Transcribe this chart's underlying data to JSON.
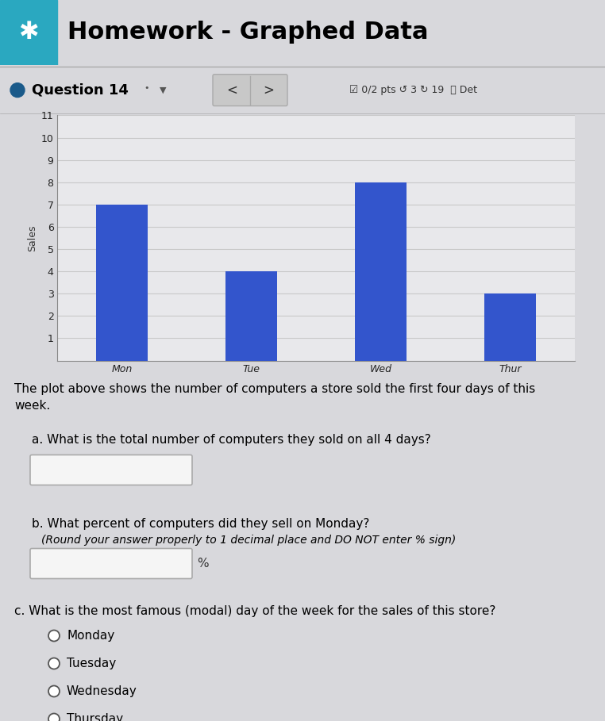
{
  "page_title": "Homework - Graphed Data",
  "question_number": "Question 14",
  "bar_categories": [
    "Mon",
    "Tue",
    "Wed",
    "Thur"
  ],
  "bar_values": [
    7,
    4,
    8,
    3
  ],
  "bar_color": "#3355cc",
  "ylabel": "Sales",
  "ylim": [
    0,
    11
  ],
  "yticks": [
    1,
    2,
    3,
    4,
    5,
    6,
    7,
    8,
    9,
    10,
    11
  ],
  "grid_color": "#c8c8c8",
  "chart_bg": "#e8e8eb",
  "page_bg": "#d8d8dc",
  "header_bg": "#f0f0f0",
  "icon_bg": "#2aa8c0",
  "bullet_color": "#1a5a8a",
  "nav_bg": "#c8c8c8",
  "content_bg": "#e8e8ec",
  "input_bg": "#f5f5f5",
  "text_color": "#111111",
  "text_block": "The plot above shows the number of computers a store sold the first four days of this week.",
  "q_a_text": "a. What is the total number of computers they sold on all 4 days?",
  "q_b1": "b. What percent of computers did they sell on Monday?",
  "q_b2": "   (Round your answer properly to 1 decimal place and DO NOT enter % sign)",
  "q_c": "c. What is the most famous (modal) day of the week for the sales of this store?",
  "options": [
    "Monday",
    "Tuesday",
    "Wednesday",
    "Thursday"
  ],
  "pts_text": "☑ 0/2 pts ↺ 3 ↻ 19  ⓘ Det"
}
